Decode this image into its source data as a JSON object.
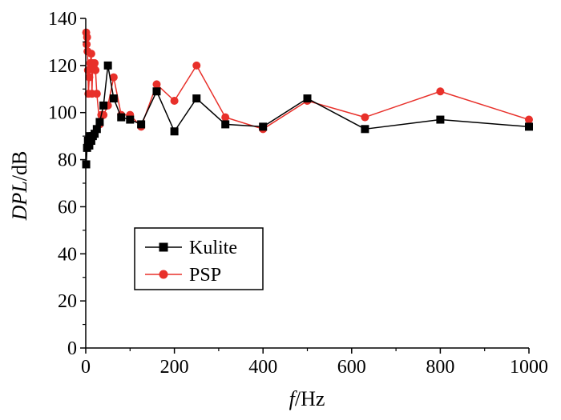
{
  "chart_data": {
    "type": "line",
    "xlabel": {
      "italic": "f",
      "rest": "/Hz"
    },
    "ylabel": {
      "italic": "DPL",
      "rest": "/dB"
    },
    "xlim": [
      0,
      1000
    ],
    "ylim": [
      0,
      140
    ],
    "x_ticks": [
      0,
      200,
      400,
      600,
      800,
      1000
    ],
    "y_ticks": [
      0,
      20,
      40,
      60,
      80,
      100,
      120,
      140
    ],
    "grid": false,
    "legend_position": "middle-left",
    "series": [
      {
        "name": "Kulite",
        "color": "#000000",
        "marker": "square",
        "x": [
          1,
          3,
          5,
          8,
          10,
          12.5,
          16,
          20,
          25,
          31.5,
          40,
          50,
          63,
          80,
          100,
          125,
          160,
          200,
          250,
          315,
          400,
          500,
          630,
          800,
          1000
        ],
        "y": [
          78,
          85,
          88,
          86,
          90,
          88,
          90,
          91,
          93,
          96,
          103,
          120,
          106,
          98,
          97,
          95,
          109,
          92,
          106,
          95,
          94,
          106,
          93,
          97,
          94
        ]
      },
      {
        "name": "PSP",
        "color": "#e8302a",
        "marker": "circle",
        "x": [
          1,
          2,
          3,
          4,
          5,
          6,
          8,
          10,
          12.5,
          14,
          16,
          18,
          20,
          22,
          25,
          31.5,
          35,
          40,
          50,
          63,
          80,
          100,
          125,
          160,
          200,
          250,
          315,
          400,
          500,
          630,
          800,
          1000
        ],
        "y": [
          134,
          129,
          132,
          126,
          118,
          108,
          115,
          121,
          125,
          108,
          121,
          119,
          121,
          118,
          108,
          95,
          99,
          99,
          103,
          115,
          99,
          99,
          94,
          112,
          105,
          120,
          98,
          93,
          105,
          98,
          109,
          97
        ]
      }
    ]
  }
}
